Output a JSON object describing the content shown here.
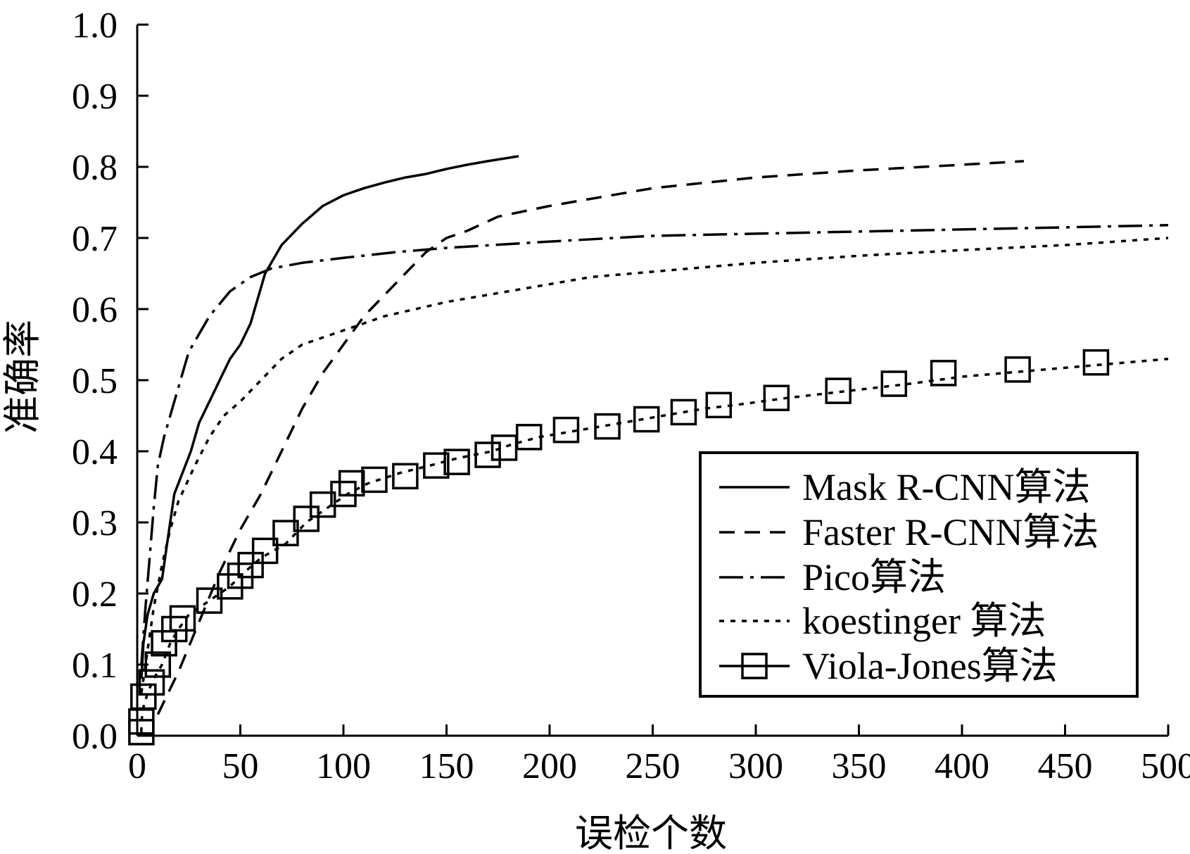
{
  "chart_data": {
    "type": "line",
    "title": "",
    "xlabel": "误检个数",
    "ylabel": "准确率",
    "xlim": [
      0,
      500
    ],
    "ylim": [
      0.0,
      1.0
    ],
    "x_ticks": [
      0,
      50,
      100,
      150,
      200,
      250,
      300,
      350,
      400,
      450,
      500
    ],
    "y_ticks": [
      0.0,
      0.1,
      0.2,
      0.3,
      0.4,
      0.5,
      0.6,
      0.7,
      0.8,
      0.9,
      1.0
    ],
    "x_tick_labels": [
      "0",
      "50",
      "100",
      "150",
      "200",
      "250",
      "300",
      "350",
      "400",
      "450",
      "500"
    ],
    "y_tick_labels": [
      "0.0",
      "0.1",
      "0.2",
      "0.3",
      "0.4",
      "0.5",
      "0.6",
      "0.7",
      "0.8",
      "0.9",
      "1.0"
    ],
    "grid": false,
    "legend_position": "bottom-right",
    "series": [
      {
        "name": "Mask R-CNN算法",
        "line_style": "solid",
        "marker": "none",
        "color": "#000000",
        "points": [
          [
            2,
            0.08
          ],
          [
            3,
            0.13
          ],
          [
            5,
            0.17
          ],
          [
            8,
            0.2
          ],
          [
            12,
            0.22
          ],
          [
            15,
            0.28
          ],
          [
            18,
            0.34
          ],
          [
            22,
            0.37
          ],
          [
            26,
            0.4
          ],
          [
            30,
            0.44
          ],
          [
            35,
            0.47
          ],
          [
            40,
            0.5
          ],
          [
            45,
            0.53
          ],
          [
            50,
            0.55
          ],
          [
            55,
            0.58
          ],
          [
            58,
            0.61
          ],
          [
            62,
            0.65
          ],
          [
            70,
            0.69
          ],
          [
            80,
            0.72
          ],
          [
            90,
            0.745
          ],
          [
            100,
            0.76
          ],
          [
            110,
            0.77
          ],
          [
            120,
            0.778
          ],
          [
            130,
            0.785
          ],
          [
            140,
            0.79
          ],
          [
            150,
            0.797
          ],
          [
            160,
            0.803
          ],
          [
            170,
            0.808
          ],
          [
            185,
            0.815
          ]
        ]
      },
      {
        "name": "Faster R-CNN算法",
        "line_style": "dashed",
        "marker": "none",
        "color": "#000000",
        "points": [
          [
            10,
            0.03
          ],
          [
            20,
            0.09
          ],
          [
            30,
            0.16
          ],
          [
            40,
            0.23
          ],
          [
            50,
            0.29
          ],
          [
            60,
            0.34
          ],
          [
            70,
            0.4
          ],
          [
            80,
            0.46
          ],
          [
            90,
            0.51
          ],
          [
            100,
            0.55
          ],
          [
            110,
            0.59
          ],
          [
            120,
            0.62
          ],
          [
            130,
            0.65
          ],
          [
            140,
            0.68
          ],
          [
            150,
            0.7
          ],
          [
            160,
            0.71
          ],
          [
            175,
            0.73
          ],
          [
            200,
            0.745
          ],
          [
            250,
            0.77
          ],
          [
            300,
            0.785
          ],
          [
            350,
            0.795
          ],
          [
            400,
            0.803
          ],
          [
            430,
            0.808
          ]
        ]
      },
      {
        "name": "Pico算法",
        "line_style": "dashdot",
        "marker": "none",
        "color": "#000000",
        "points": [
          [
            2,
            0.1
          ],
          [
            4,
            0.18
          ],
          [
            6,
            0.25
          ],
          [
            8,
            0.32
          ],
          [
            10,
            0.38
          ],
          [
            13,
            0.42
          ],
          [
            18,
            0.47
          ],
          [
            25,
            0.54
          ],
          [
            35,
            0.59
          ],
          [
            45,
            0.625
          ],
          [
            55,
            0.645
          ],
          [
            65,
            0.657
          ],
          [
            80,
            0.665
          ],
          [
            100,
            0.672
          ],
          [
            125,
            0.68
          ],
          [
            150,
            0.686
          ],
          [
            200,
            0.695
          ],
          [
            250,
            0.703
          ],
          [
            300,
            0.706
          ],
          [
            350,
            0.709
          ],
          [
            400,
            0.712
          ],
          [
            450,
            0.715
          ],
          [
            500,
            0.718
          ]
        ]
      },
      {
        "name": "koestinger 算法",
        "line_style": "dotted",
        "marker": "none",
        "color": "#000000",
        "points": [
          [
            2,
            0.06
          ],
          [
            5,
            0.12
          ],
          [
            8,
            0.18
          ],
          [
            12,
            0.24
          ],
          [
            16,
            0.29
          ],
          [
            20,
            0.33
          ],
          [
            28,
            0.38
          ],
          [
            35,
            0.42
          ],
          [
            42,
            0.45
          ],
          [
            50,
            0.47
          ],
          [
            60,
            0.5
          ],
          [
            70,
            0.53
          ],
          [
            80,
            0.55
          ],
          [
            100,
            0.57
          ],
          [
            120,
            0.59
          ],
          [
            150,
            0.61
          ],
          [
            180,
            0.625
          ],
          [
            220,
            0.645
          ],
          [
            260,
            0.655
          ],
          [
            300,
            0.665
          ],
          [
            350,
            0.675
          ],
          [
            400,
            0.683
          ],
          [
            450,
            0.69
          ],
          [
            500,
            0.7
          ]
        ]
      },
      {
        "name": "Viola-Jones算法",
        "line_style": "dotted",
        "marker": "square",
        "color": "#000000",
        "points": [
          [
            2,
            0.005
          ],
          [
            2,
            0.02
          ],
          [
            3,
            0.04
          ],
          [
            5,
            0.06
          ],
          [
            8,
            0.08
          ],
          [
            12,
            0.1
          ],
          [
            16,
            0.13
          ],
          [
            20,
            0.15
          ],
          [
            25,
            0.17
          ],
          [
            35,
            0.19
          ],
          [
            45,
            0.21
          ],
          [
            52,
            0.23
          ],
          [
            60,
            0.25
          ],
          [
            72,
            0.27
          ],
          [
            82,
            0.3
          ],
          [
            92,
            0.32
          ],
          [
            102,
            0.34
          ],
          [
            112,
            0.355
          ],
          [
            128,
            0.37
          ],
          [
            142,
            0.38
          ],
          [
            155,
            0.39
          ],
          [
            172,
            0.4
          ],
          [
            182,
            0.41
          ],
          [
            195,
            0.42
          ],
          [
            215,
            0.43
          ],
          [
            235,
            0.44
          ],
          [
            255,
            0.45
          ],
          [
            275,
            0.46
          ],
          [
            290,
            0.465
          ],
          [
            315,
            0.475
          ],
          [
            345,
            0.485
          ],
          [
            375,
            0.495
          ],
          [
            400,
            0.505
          ],
          [
            440,
            0.515
          ],
          [
            480,
            0.525
          ],
          [
            500,
            0.53
          ]
        ],
        "marker_points": [
          [
            2,
            0.005
          ],
          [
            2,
            0.02
          ],
          [
            3,
            0.055
          ],
          [
            7,
            0.075
          ],
          [
            10,
            0.1
          ],
          [
            13,
            0.13
          ],
          [
            18,
            0.15
          ],
          [
            22,
            0.165
          ],
          [
            35,
            0.19
          ],
          [
            45,
            0.21
          ],
          [
            50,
            0.225
          ],
          [
            55,
            0.24
          ],
          [
            62,
            0.26
          ],
          [
            72,
            0.285
          ],
          [
            82,
            0.305
          ],
          [
            90,
            0.325
          ],
          [
            100,
            0.34
          ],
          [
            104,
            0.355
          ],
          [
            115,
            0.36
          ],
          [
            130,
            0.365
          ],
          [
            145,
            0.38
          ],
          [
            155,
            0.385
          ],
          [
            170,
            0.395
          ],
          [
            178,
            0.405
          ],
          [
            190,
            0.42
          ],
          [
            208,
            0.43
          ],
          [
            228,
            0.435
          ],
          [
            247,
            0.445
          ],
          [
            265,
            0.455
          ],
          [
            282,
            0.465
          ],
          [
            310,
            0.475
          ],
          [
            340,
            0.485
          ],
          [
            367,
            0.495
          ],
          [
            391,
            0.51
          ],
          [
            427,
            0.515
          ],
          [
            465,
            0.525
          ]
        ]
      }
    ]
  }
}
